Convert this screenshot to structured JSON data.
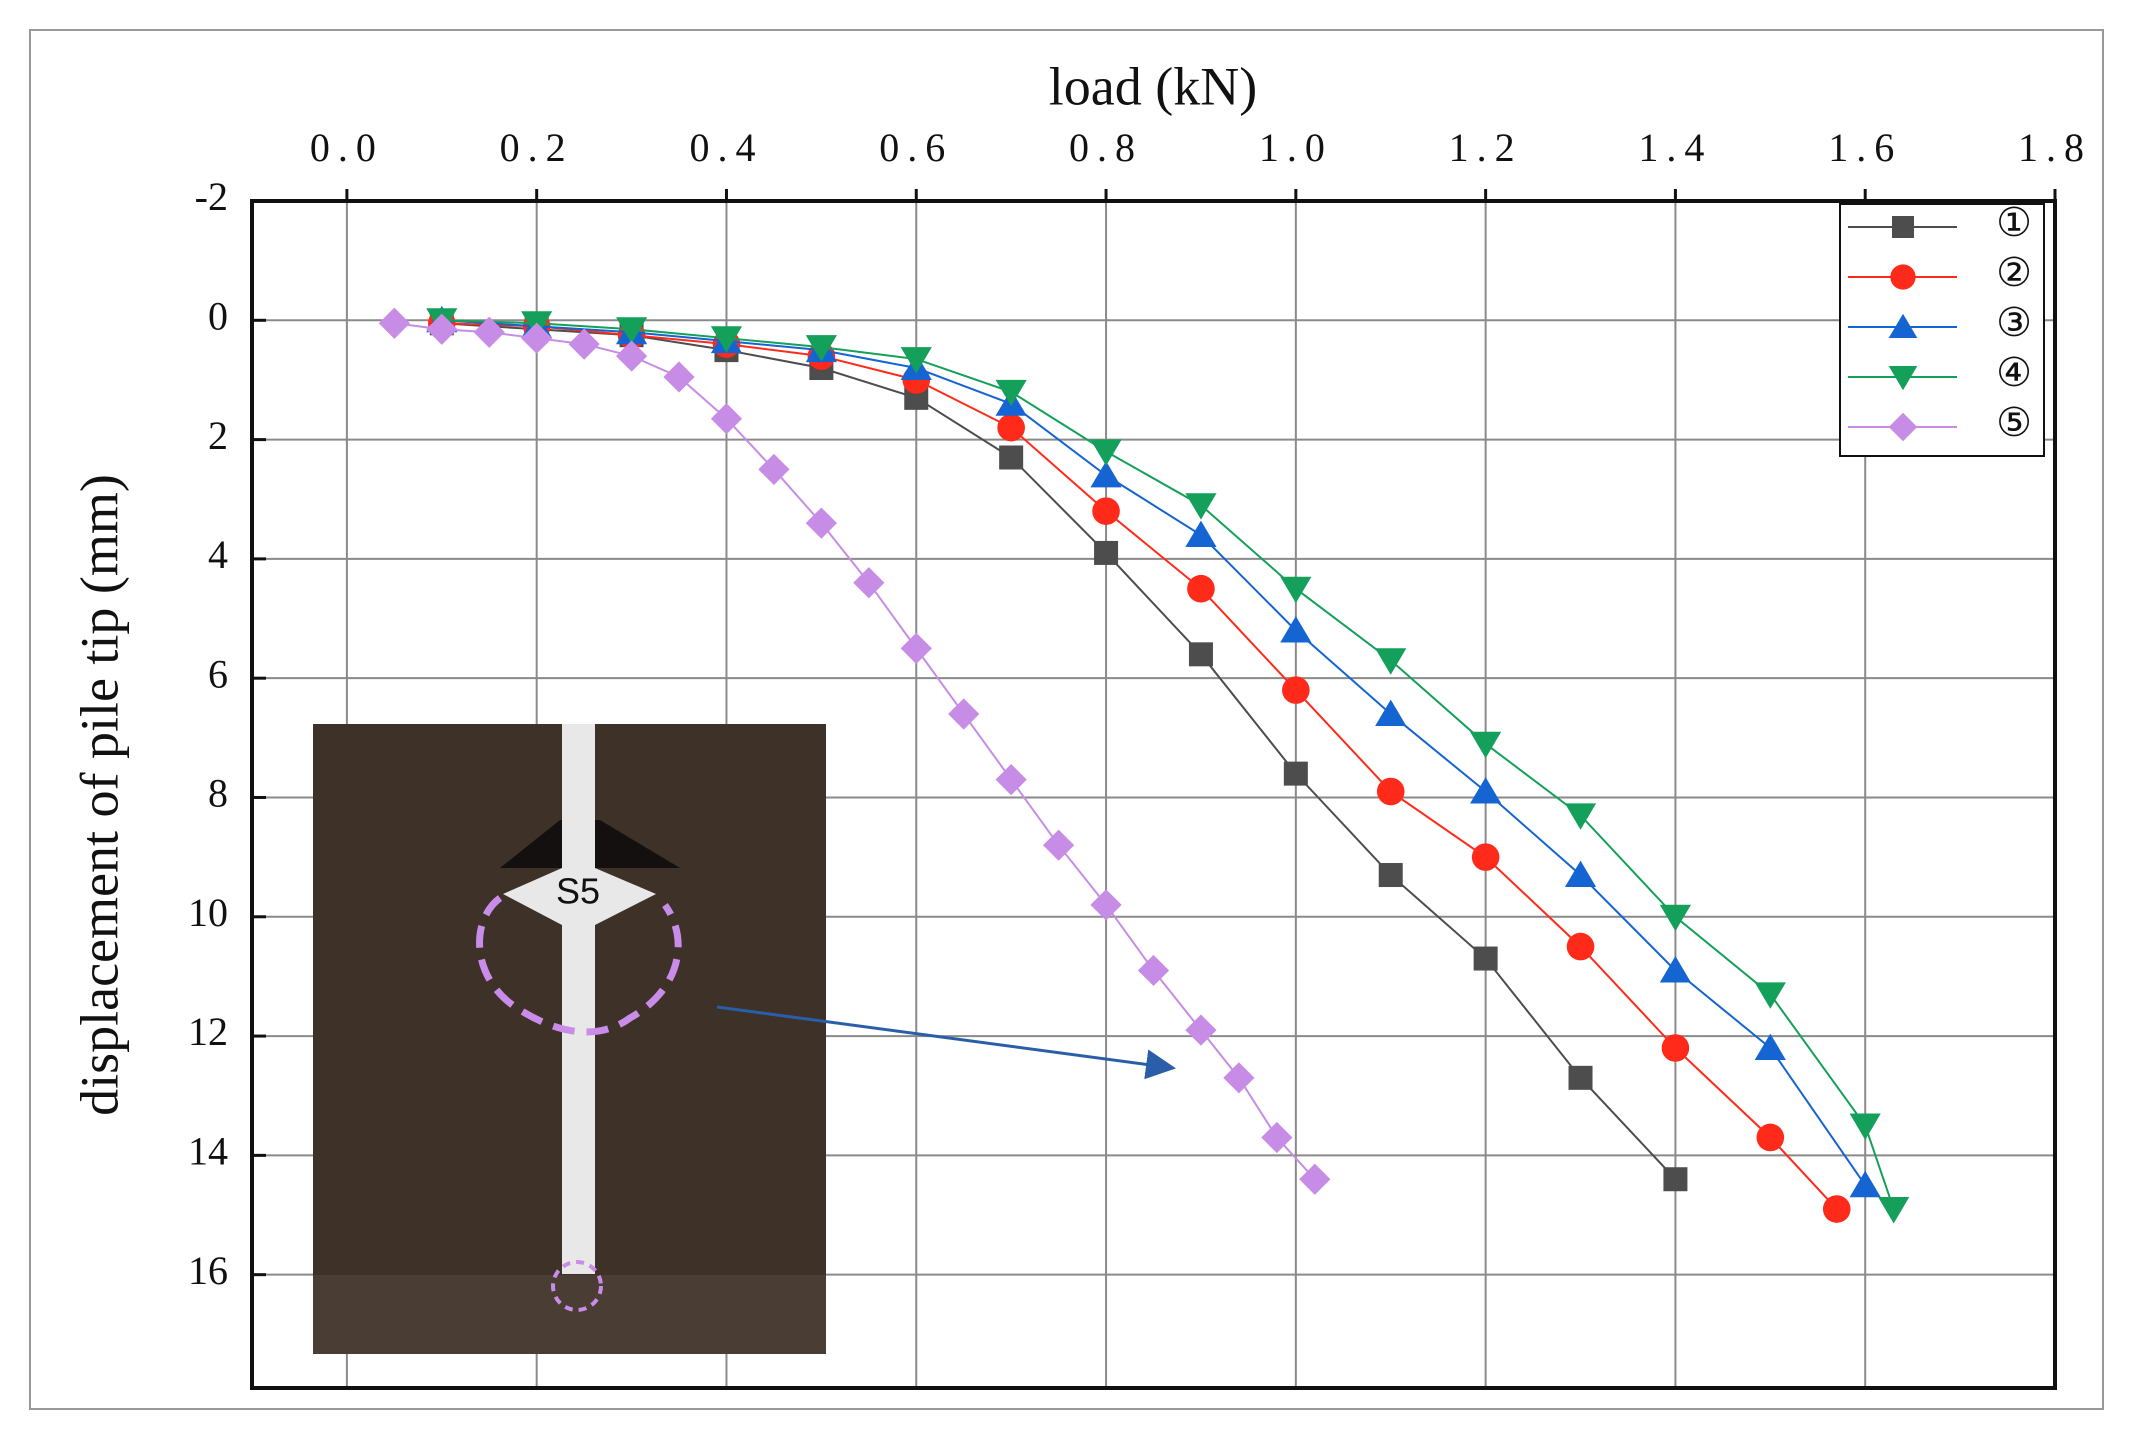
{
  "chart_data": {
    "type": "line",
    "x_label": "load  (kN)",
    "y_label": "displacement of pile tip  (mm)",
    "xlim": [
      -0.1,
      1.8
    ],
    "ylim": [
      -2,
      17.9
    ],
    "y_inverted": true,
    "x_axis_position": "top",
    "xticks": [
      {
        "value": 0,
        "label": "0.0"
      },
      0.2,
      0.4,
      0.6,
      0.8,
      {
        "value": 1,
        "label": "1.0"
      },
      1.2,
      1.4,
      1.6,
      1.8
    ],
    "yticks": [
      -2,
      0,
      2,
      4,
      6,
      8,
      10,
      12,
      14,
      16
    ],
    "grid": true,
    "legend_position": "upper right",
    "series": [
      {
        "name": "①",
        "color": "#4d4d4d",
        "marker": "square",
        "x": [
          0.1,
          0.2,
          0.3,
          0.4,
          0.5,
          0.6,
          0.7,
          0.8,
          0.9,
          1.0,
          1.1,
          1.2,
          1.3,
          1.4
        ],
        "values": [
          0.05,
          0.15,
          0.25,
          0.5,
          0.8,
          1.3,
          2.3,
          3.9,
          5.6,
          7.6,
          9.3,
          10.7,
          12.7,
          14.4
        ]
      },
      {
        "name": "②",
        "color": "#ff2a1a",
        "marker": "circle",
        "x": [
          0.1,
          0.2,
          0.3,
          0.4,
          0.5,
          0.6,
          0.7,
          0.8,
          0.9,
          1.0,
          1.1,
          1.2,
          1.3,
          1.4,
          1.5,
          1.57
        ],
        "values": [
          0.05,
          0.1,
          0.25,
          0.4,
          0.6,
          1.0,
          1.8,
          3.2,
          4.5,
          6.2,
          7.9,
          9.0,
          10.5,
          12.2,
          13.7,
          14.9
        ]
      },
      {
        "name": "③",
        "color": "#1464d2",
        "marker": "triangle",
        "x": [
          0.1,
          0.2,
          0.3,
          0.4,
          0.5,
          0.6,
          0.7,
          0.8,
          0.9,
          1.0,
          1.1,
          1.2,
          1.3,
          1.4,
          1.5,
          1.6
        ],
        "values": [
          0.0,
          0.1,
          0.2,
          0.35,
          0.5,
          0.8,
          1.4,
          2.6,
          3.6,
          5.2,
          6.6,
          7.9,
          9.3,
          10.9,
          12.2,
          14.5
        ]
      },
      {
        "name": "④",
        "color": "#14a05a",
        "marker": "triangle-down",
        "x": [
          0.1,
          0.2,
          0.3,
          0.4,
          0.5,
          0.6,
          0.7,
          0.8,
          0.9,
          1.0,
          1.1,
          1.2,
          1.3,
          1.4,
          1.5,
          1.6,
          1.63
        ],
        "values": [
          0.0,
          0.05,
          0.15,
          0.3,
          0.45,
          0.65,
          1.2,
          2.2,
          3.1,
          4.5,
          5.7,
          7.1,
          8.3,
          10.0,
          11.3,
          13.5,
          14.9
        ]
      },
      {
        "name": "⑤",
        "color": "#c78ce6",
        "marker": "diamond",
        "x": [
          0.05,
          0.1,
          0.15,
          0.2,
          0.25,
          0.3,
          0.35,
          0.4,
          0.45,
          0.5,
          0.55,
          0.6,
          0.65,
          0.7,
          0.75,
          0.8,
          0.85,
          0.9,
          0.94,
          0.98,
          1.02
        ],
        "values": [
          0.05,
          0.15,
          0.2,
          0.3,
          0.4,
          0.6,
          0.95,
          1.65,
          2.5,
          3.4,
          4.4,
          5.5,
          6.6,
          7.7,
          8.8,
          9.8,
          10.9,
          11.9,
          12.7,
          13.7,
          14.4
        ]
      }
    ]
  },
  "inset": {
    "label": "S5"
  }
}
